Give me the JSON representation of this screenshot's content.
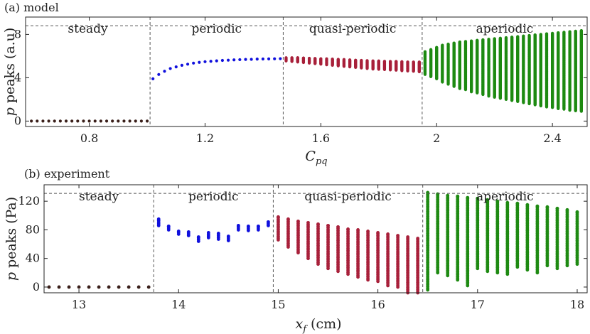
{
  "chart_data": [
    {
      "type": "scatter",
      "title": "(a) model",
      "xlabel": "C",
      "xlabel_sub": "pq",
      "ylabel_italic": "p",
      "ylabel_rest": " peaks (a.u)",
      "xlim": [
        0.58,
        2.52
      ],
      "ylim": [
        -0.5,
        9.6
      ],
      "xticks": [
        0.8,
        1.2,
        1.6,
        2,
        2.4
      ],
      "xtick_labels": [
        "0.8",
        "1.2",
        "1.6",
        "2",
        "2.4"
      ],
      "yticks": [
        0,
        4,
        8
      ],
      "ytick_labels": [
        "0",
        "4",
        "8"
      ],
      "dashed_ceiling": 8.8,
      "regime_boundaries": [
        1.01,
        1.47,
        1.95
      ],
      "regimes": [
        {
          "label": "steady",
          "x": [
            0.58,
            1.01
          ]
        },
        {
          "label": "periodic",
          "x": [
            1.01,
            1.47
          ]
        },
        {
          "label": "quasi-periodic",
          "x": [
            1.47,
            1.95
          ]
        },
        {
          "label": "aperiodic",
          "x": [
            1.95,
            2.52
          ]
        }
      ],
      "series": [
        {
          "regime": "steady",
          "color": "#3a1f1a",
          "x": [
            0.6,
            0.62,
            0.64,
            0.66,
            0.68,
            0.7,
            0.72,
            0.74,
            0.76,
            0.78,
            0.8,
            0.82,
            0.84,
            0.86,
            0.88,
            0.9,
            0.92,
            0.94,
            0.96,
            0.98,
            1.0
          ],
          "y_min": [
            0,
            0,
            0,
            0,
            0,
            0,
            0,
            0,
            0,
            0,
            0,
            0,
            0,
            0,
            0,
            0,
            0,
            0,
            0,
            0,
            0
          ],
          "y_max": [
            0,
            0,
            0,
            0,
            0,
            0,
            0,
            0,
            0,
            0,
            0,
            0,
            0,
            0,
            0,
            0,
            0,
            0,
            0,
            0,
            0
          ]
        },
        {
          "regime": "periodic",
          "color": "#1010dd",
          "x": [
            1.02,
            1.04,
            1.06,
            1.08,
            1.1,
            1.12,
            1.14,
            1.16,
            1.18,
            1.2,
            1.22,
            1.24,
            1.26,
            1.28,
            1.3,
            1.32,
            1.34,
            1.36,
            1.38,
            1.4,
            1.42,
            1.44,
            1.46
          ],
          "y_min": [
            3.9,
            4.3,
            4.6,
            4.85,
            5.0,
            5.15,
            5.25,
            5.35,
            5.42,
            5.48,
            5.52,
            5.56,
            5.6,
            5.62,
            5.65,
            5.67,
            5.69,
            5.7,
            5.72,
            5.73,
            5.74,
            5.75,
            5.76
          ],
          "y_max": [
            3.9,
            4.3,
            4.6,
            4.85,
            5.0,
            5.15,
            5.25,
            5.35,
            5.42,
            5.48,
            5.52,
            5.56,
            5.6,
            5.62,
            5.65,
            5.67,
            5.69,
            5.7,
            5.72,
            5.73,
            5.74,
            5.75,
            5.76
          ]
        },
        {
          "regime": "quasi-periodic",
          "color": "#a8203a",
          "x": [
            1.48,
            1.5,
            1.52,
            1.54,
            1.56,
            1.58,
            1.6,
            1.62,
            1.64,
            1.66,
            1.68,
            1.7,
            1.72,
            1.74,
            1.76,
            1.78,
            1.8,
            1.82,
            1.84,
            1.86,
            1.88,
            1.9,
            1.92,
            1.94
          ],
          "y_min": [
            5.55,
            5.5,
            5.45,
            5.4,
            5.35,
            5.3,
            5.25,
            5.2,
            5.15,
            5.1,
            5.05,
            5.0,
            4.95,
            4.9,
            4.85,
            4.8,
            4.78,
            4.75,
            4.72,
            4.7,
            4.65,
            4.62,
            4.6,
            4.55
          ],
          "y_max": [
            5.85,
            5.85,
            5.85,
            5.82,
            5.8,
            5.78,
            5.75,
            5.75,
            5.72,
            5.7,
            5.68,
            5.65,
            5.62,
            5.6,
            5.58,
            5.55,
            5.55,
            5.52,
            5.5,
            5.5,
            5.48,
            5.45,
            5.45,
            5.45
          ]
        },
        {
          "regime": "aperiodic",
          "color": "#1e8a12",
          "x": [
            1.96,
            1.98,
            2.0,
            2.02,
            2.04,
            2.06,
            2.08,
            2.1,
            2.12,
            2.14,
            2.16,
            2.18,
            2.2,
            2.22,
            2.24,
            2.26,
            2.28,
            2.3,
            2.32,
            2.34,
            2.36,
            2.38,
            2.4,
            2.42,
            2.44,
            2.46,
            2.48,
            2.5
          ],
          "y_min": [
            4.3,
            4.1,
            3.9,
            3.6,
            3.4,
            3.2,
            3.0,
            2.9,
            2.7,
            2.6,
            2.45,
            2.3,
            2.2,
            2.1,
            2.0,
            1.9,
            1.8,
            1.7,
            1.6,
            1.5,
            1.4,
            1.3,
            1.25,
            1.15,
            1.1,
            1.0,
            0.95,
            0.9
          ],
          "y_max": [
            6.4,
            6.6,
            6.8,
            7.0,
            7.1,
            7.2,
            7.3,
            7.35,
            7.4,
            7.45,
            7.5,
            7.55,
            7.6,
            7.65,
            7.7,
            7.75,
            7.8,
            7.85,
            7.9,
            7.95,
            8.0,
            8.05,
            8.1,
            8.15,
            8.2,
            8.25,
            8.3,
            8.35
          ]
        }
      ]
    },
    {
      "type": "scatter",
      "title": "(b) experiment",
      "xlabel": "x",
      "xlabel_sub": "f",
      "xlabel_unit": " (cm)",
      "ylabel_italic": "p",
      "ylabel_rest": " peaks (Pa)",
      "xlim": [
        12.65,
        18.1
      ],
      "ylim": [
        -8,
        143
      ],
      "xticks": [
        13,
        14,
        15,
        16,
        17,
        18
      ],
      "xtick_labels": [
        "13",
        "14",
        "15",
        "16",
        "17",
        "18"
      ],
      "yticks": [
        0,
        40,
        80,
        120
      ],
      "ytick_labels": [
        "0",
        "40",
        "80",
        "120"
      ],
      "dashed_ceiling": 131,
      "regime_boundaries": [
        13.75,
        14.95,
        16.45
      ],
      "regimes": [
        {
          "label": "steady",
          "x": [
            12.65,
            13.75
          ]
        },
        {
          "label": "periodic",
          "x": [
            13.75,
            14.95
          ]
        },
        {
          "label": "quasi-periodic",
          "x": [
            14.95,
            16.45
          ]
        },
        {
          "label": "aperiodic",
          "x": [
            16.45,
            18.1
          ]
        }
      ],
      "series": [
        {
          "regime": "steady",
          "color": "#3a1f1a",
          "x": [
            12.7,
            12.8,
            12.9,
            13.0,
            13.1,
            13.2,
            13.3,
            13.4,
            13.5,
            13.6,
            13.7
          ],
          "y_min": [
            0,
            0,
            0,
            0,
            0,
            0,
            0,
            0,
            0,
            0,
            0
          ],
          "y_max": [
            0,
            0,
            0,
            0,
            0,
            0,
            0,
            0,
            0,
            0,
            0
          ]
        },
        {
          "regime": "periodic",
          "color": "#1010dd",
          "x": [
            13.8,
            13.9,
            14.0,
            14.1,
            14.2,
            14.3,
            14.4,
            14.5,
            14.6,
            14.7,
            14.8,
            14.9
          ],
          "y_min": [
            86,
            80,
            74,
            72,
            64,
            69,
            67,
            65,
            80,
            79,
            80,
            86
          ],
          "y_max": [
            95,
            85,
            78,
            77,
            70,
            76,
            75,
            71,
            86,
            85,
            85,
            91
          ]
        },
        {
          "regime": "quasi-periodic",
          "color": "#a8203a",
          "x": [
            15.0,
            15.1,
            15.2,
            15.3,
            15.4,
            15.5,
            15.6,
            15.7,
            15.8,
            15.9,
            16.0,
            16.1,
            16.2,
            16.3,
            16.4
          ],
          "y_min": [
            66,
            56,
            48,
            40,
            32,
            26,
            22,
            18,
            14,
            10,
            8,
            2,
            0,
            -8,
            -8
          ],
          "y_max": [
            98,
            95,
            92,
            90,
            88,
            86,
            84,
            81,
            80,
            78,
            76,
            74,
            72,
            70,
            68
          ]
        },
        {
          "regime": "aperiodic",
          "color": "#1e8a12",
          "x": [
            16.5,
            16.6,
            16.7,
            16.8,
            16.9,
            17.0,
            17.1,
            17.2,
            17.3,
            17.4,
            17.5,
            17.6,
            17.7,
            17.8,
            17.9,
            18.0
          ],
          "y_min": [
            -4,
            20,
            16,
            10,
            2,
            26,
            22,
            20,
            18,
            28,
            24,
            20,
            30,
            26,
            30,
            32
          ],
          "y_max": [
            132,
            130,
            128,
            127,
            125,
            124,
            122,
            120,
            118,
            117,
            115,
            113,
            112,
            110,
            108,
            105
          ]
        }
      ]
    }
  ]
}
